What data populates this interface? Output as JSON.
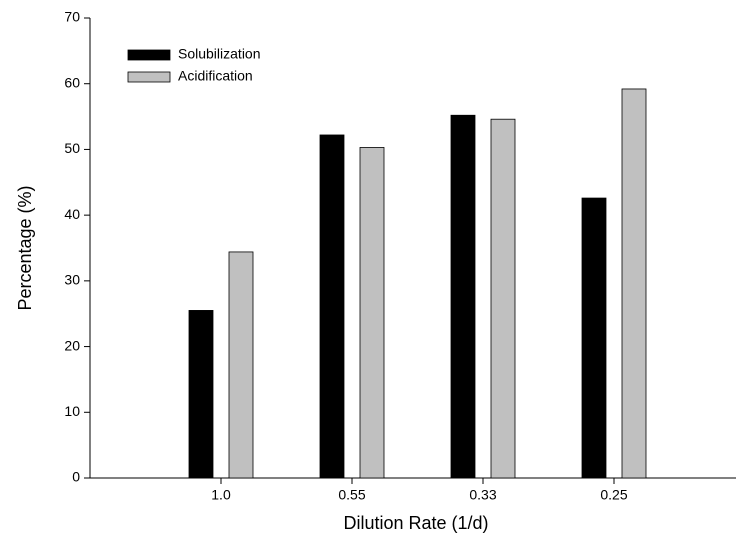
{
  "chart_data": {
    "type": "bar",
    "x_label": "Dilution Rate (1/d)",
    "y_label": "Percentage (%)",
    "categories": [
      "1.0",
      "0.55",
      "0.33",
      "0.25"
    ],
    "series": [
      {
        "name": "Solubilization",
        "color": "#000000",
        "values": [
          25.5,
          52.2,
          55.2,
          42.6
        ]
      },
      {
        "name": "Acidification",
        "color": "#c0c0c0",
        "values": [
          34.4,
          50.3,
          54.6,
          59.2
        ]
      }
    ],
    "ylim": [
      0,
      70
    ],
    "yticks": [
      0,
      10,
      20,
      30,
      40,
      50,
      60,
      70
    ],
    "grid": false,
    "legend": "upper-left"
  }
}
